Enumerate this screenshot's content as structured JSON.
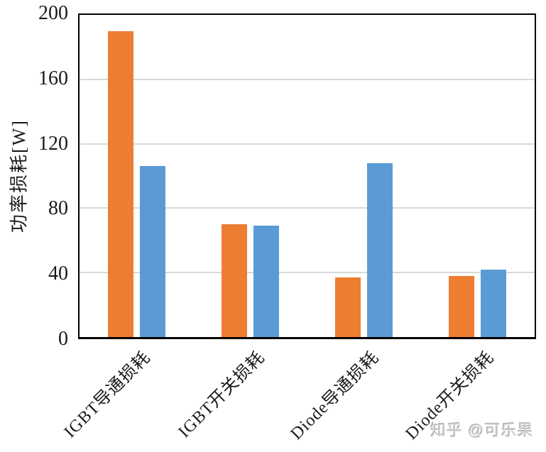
{
  "chart_data": {
    "type": "bar",
    "title": "",
    "categories": [
      "IGBT导通损耗",
      "IGBT开关损耗",
      "Diode导通损耗",
      "Diode开关损耗"
    ],
    "series": [
      {
        "name": "orange-series",
        "color": "#ED7D31",
        "values": [
          190,
          70,
          37,
          38
        ]
      },
      {
        "name": "blue-series",
        "color": "#5B9BD5",
        "values": [
          106,
          69,
          108,
          42
        ]
      }
    ],
    "xlabel": "",
    "ylabel": "功率损耗[W]",
    "ylim": [
      0,
      200
    ],
    "yticks": [
      0,
      40,
      80,
      120,
      160,
      200
    ],
    "grid": "horizontal-gridlines",
    "gridline_color": "#D9D9D9",
    "axis_frame_color": "#000000",
    "legend_position": "none",
    "x_tick_rotation_deg": 45
  },
  "watermark": {
    "text": "知乎 @可乐果",
    "color": "#C8C8C8"
  }
}
